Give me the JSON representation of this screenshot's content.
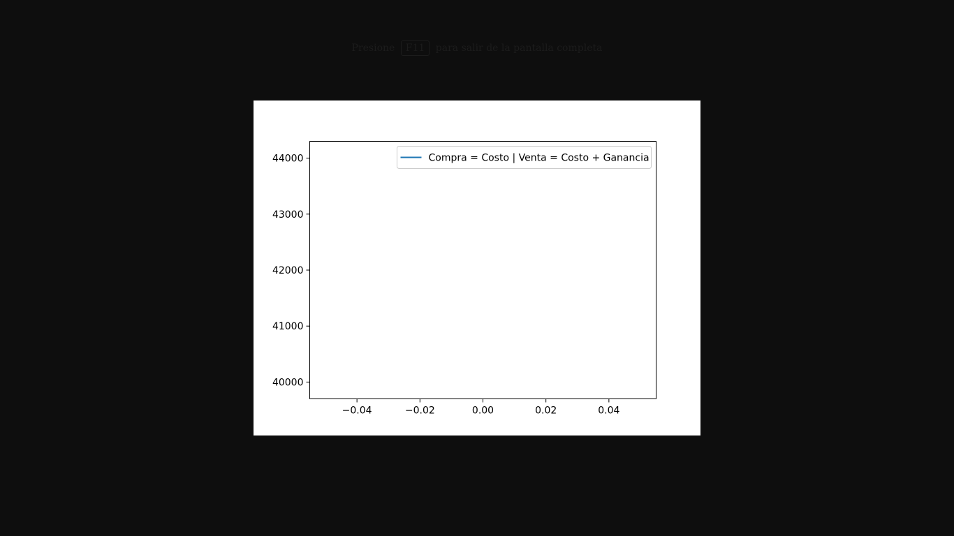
{
  "hint": {
    "prefix": "Presione",
    "key": "F11",
    "suffix": "para salir de la pantalla completa"
  },
  "colors": {
    "background": "#0e0e0e",
    "figure_background": "#ffffff",
    "series_line": "#1f77b4"
  },
  "chart_data": {
    "type": "line",
    "title": "",
    "xlabel": "",
    "ylabel": "",
    "xlim": [
      -0.055,
      0.055
    ],
    "ylim": [
      39700,
      44300
    ],
    "x_ticks": [
      -0.04,
      -0.02,
      0.0,
      0.02,
      0.04
    ],
    "x_tick_labels": [
      "−0.04",
      "−0.02",
      "0.00",
      "0.02",
      "0.04"
    ],
    "y_ticks": [
      40000,
      41000,
      42000,
      43000,
      44000
    ],
    "y_tick_labels": [
      "40000",
      "41000",
      "42000",
      "43000",
      "44000"
    ],
    "grid": false,
    "legend_position": "top-right",
    "series": [
      {
        "name": "Compra = Costo | Venta = Costo + Ganancia",
        "color": "#1f77b4",
        "x": [],
        "y": []
      }
    ]
  }
}
